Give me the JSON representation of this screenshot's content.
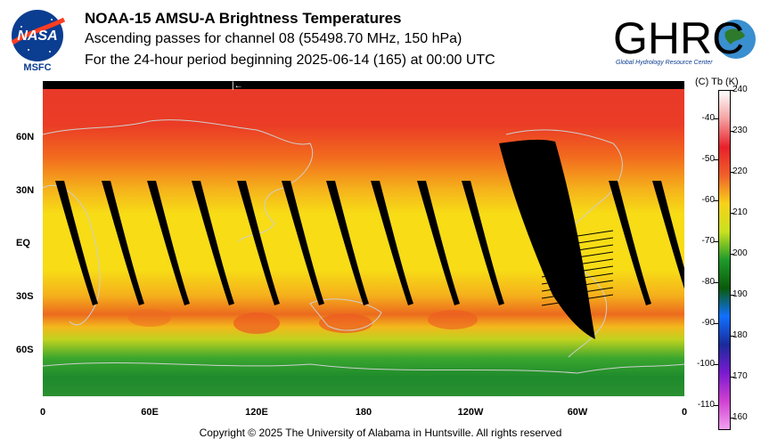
{
  "header": {
    "title": "NOAA-15 AMSU-A Brightness Temperatures",
    "line2": "Ascending passes for channel 08 (55498.70 MHz, 150 hPa)",
    "line3": "For the 24-hour period beginning 2025-06-14 (165) at 00:00 UTC"
  },
  "logos": {
    "nasa_text": "NASA",
    "msfc_text": "MSFC",
    "ghrc_text": "GHRC",
    "ghrc_tagline": "Global Hydrology Resource Center"
  },
  "map": {
    "lat_labels": [
      "60N",
      "30N",
      "EQ",
      "30S",
      "60S"
    ],
    "lon_labels": [
      "0",
      "60E",
      "120E",
      "180",
      "120W",
      "60W",
      "0"
    ],
    "direction_marker": "|←",
    "colors": {
      "polar_warm": "#e8392a",
      "mid_lat": "#f26a1e",
      "tropics": "#f7dc16",
      "southern_high": "#1e8a2c",
      "swath_gap": "#000000",
      "coastline": "#cfcfcf"
    }
  },
  "colorbar": {
    "header": "(C)  Tb  (K)",
    "celsius_ticks": [
      "-40",
      "-50",
      "-60",
      "-70",
      "-80",
      "-90",
      "-100",
      "-110"
    ],
    "kelvin_ticks": [
      "240",
      "230",
      "220",
      "210",
      "200",
      "190",
      "180",
      "170",
      "160"
    ],
    "kelvin_range": [
      157,
      240
    ],
    "colors": [
      "#ffffff",
      "#f4a0a0",
      "#e8202a",
      "#f0602a",
      "#f7d21a",
      "#c8e020",
      "#1e9a2a",
      "#0a5a0a",
      "#1070ff",
      "#1a2a9a",
      "#7a1ad0",
      "#d040d0",
      "#f0a0f0"
    ]
  },
  "footer": {
    "copyright": "Copyright © 2025 The University of Alabama in Huntsville.  All rights reserved"
  }
}
